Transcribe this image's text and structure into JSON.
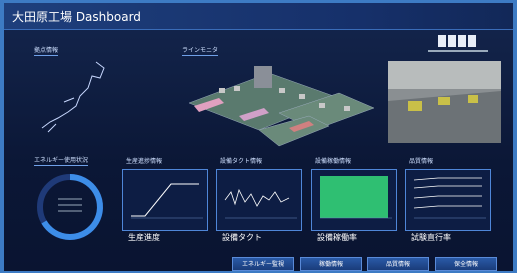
{
  "header": {
    "title": "大田原工場 Dashboard"
  },
  "sections": {
    "sites": "拠点情報",
    "line_monitor": "ラインモニタ",
    "energy": "エネルギー使用状況"
  },
  "panels": [
    {
      "title": "生産進捗情報",
      "caption": "生産進度"
    },
    {
      "title": "設備タクト情報",
      "caption": "設備タクト"
    },
    {
      "title": "設備稼働情報",
      "caption": "設備稼働率"
    },
    {
      "title": "品質情報",
      "caption": "試験直行率"
    }
  ],
  "buttons": [
    "エネルギー監視",
    "稼働情報",
    "品質情報",
    "保全情報"
  ]
}
